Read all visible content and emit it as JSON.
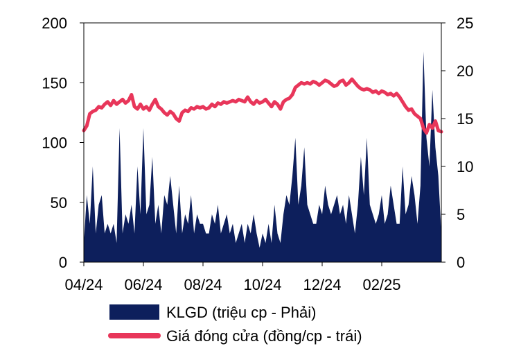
{
  "chart_data": {
    "type": "line",
    "x_tick_labels": [
      "04/24",
      "06/24",
      "08/24",
      "10/24",
      "12/24",
      "02/25"
    ],
    "x_tick_months": [
      0,
      2,
      4,
      6,
      8,
      10
    ],
    "x_range_months": [
      0,
      12
    ],
    "y_left": {
      "ticks": [
        "0",
        "50",
        "100",
        "150",
        "200"
      ],
      "range": [
        0,
        200
      ]
    },
    "y_right": {
      "ticks": [
        "0",
        "5",
        "10",
        "15",
        "20",
        "25"
      ],
      "range": [
        0,
        25
      ]
    },
    "legend_position": "bottom",
    "grid": false,
    "series": [
      {
        "name": "KLGD (triệu cp - Phải)",
        "type": "area",
        "axis": "right",
        "color": "#0d1f5c",
        "x": [
          0,
          0.1,
          0.2,
          0.3,
          0.4,
          0.5,
          0.6,
          0.7,
          0.8,
          0.9,
          1.0,
          1.1,
          1.2,
          1.3,
          1.4,
          1.5,
          1.6,
          1.7,
          1.8,
          1.9,
          2.0,
          2.1,
          2.2,
          2.3,
          2.4,
          2.5,
          2.6,
          2.7,
          2.8,
          2.9,
          3.0,
          3.1,
          3.2,
          3.3,
          3.4,
          3.5,
          3.6,
          3.7,
          3.8,
          3.9,
          4.0,
          4.1,
          4.2,
          4.3,
          4.4,
          4.5,
          4.6,
          4.7,
          4.8,
          4.9,
          5.0,
          5.1,
          5.2,
          5.3,
          5.4,
          5.5,
          5.6,
          5.7,
          5.8,
          5.9,
          6.0,
          6.1,
          6.2,
          6.3,
          6.4,
          6.5,
          6.6,
          6.7,
          6.8,
          6.9,
          7.0,
          7.1,
          7.2,
          7.3,
          7.4,
          7.5,
          7.6,
          7.7,
          7.8,
          7.9,
          8.0,
          8.1,
          8.2,
          8.3,
          8.4,
          8.5,
          8.6,
          8.7,
          8.8,
          8.9,
          9.0,
          9.1,
          9.2,
          9.3,
          9.4,
          9.5,
          9.6,
          9.7,
          9.8,
          9.9,
          10.0,
          10.1,
          10.2,
          10.3,
          10.4,
          10.5,
          10.6,
          10.7,
          10.8,
          10.9,
          11.0,
          11.1,
          11.2,
          11.3,
          11.4,
          11.5,
          11.6,
          11.7,
          11.8,
          11.9,
          12.0
        ],
        "values": [
          2,
          7,
          4,
          10,
          3,
          6,
          7,
          3,
          4,
          3,
          4,
          2,
          14,
          3,
          5,
          4,
          6,
          3,
          10,
          5,
          14,
          5,
          6,
          11,
          4,
          6,
          3,
          7,
          6,
          9,
          6,
          3,
          8,
          3,
          5,
          4,
          7,
          3,
          5,
          4,
          4,
          3,
          3,
          5,
          4,
          6,
          3,
          4,
          5,
          3,
          4,
          2,
          3,
          4,
          2,
          4,
          3,
          5,
          3,
          1.5,
          3,
          2,
          4,
          2,
          6,
          3,
          2,
          5,
          7,
          6,
          9,
          13,
          6,
          8,
          12,
          6,
          5,
          4,
          4,
          6,
          5,
          8,
          6,
          5,
          6,
          7,
          5,
          6,
          4,
          7,
          5,
          3,
          6,
          11,
          7,
          13,
          6,
          5,
          4,
          5,
          7,
          4,
          5,
          8,
          6,
          4,
          4,
          10,
          5,
          6,
          9,
          7,
          4,
          8,
          22,
          13,
          10,
          18,
          12,
          9,
          3
        ]
      },
      {
        "name": "Giá đóng cửa (đồng/cp - trái)",
        "type": "line",
        "axis": "left",
        "color": "#e8365a",
        "x": [
          0,
          0.1,
          0.2,
          0.3,
          0.4,
          0.5,
          0.6,
          0.7,
          0.8,
          0.9,
          1.0,
          1.1,
          1.2,
          1.3,
          1.4,
          1.5,
          1.6,
          1.7,
          1.8,
          1.9,
          2.0,
          2.1,
          2.2,
          2.3,
          2.4,
          2.5,
          2.6,
          2.7,
          2.8,
          2.9,
          3.0,
          3.1,
          3.2,
          3.3,
          3.4,
          3.5,
          3.6,
          3.7,
          3.8,
          3.9,
          4.0,
          4.1,
          4.2,
          4.3,
          4.4,
          4.5,
          4.6,
          4.7,
          4.8,
          4.9,
          5.0,
          5.1,
          5.2,
          5.3,
          5.4,
          5.5,
          5.6,
          5.7,
          5.8,
          5.9,
          6.0,
          6.1,
          6.2,
          6.3,
          6.4,
          6.5,
          6.6,
          6.7,
          6.8,
          6.9,
          7.0,
          7.1,
          7.2,
          7.3,
          7.4,
          7.5,
          7.6,
          7.7,
          7.8,
          7.9,
          8.0,
          8.1,
          8.2,
          8.3,
          8.4,
          8.5,
          8.6,
          8.7,
          8.8,
          8.9,
          9.0,
          9.1,
          9.2,
          9.3,
          9.4,
          9.5,
          9.6,
          9.7,
          9.8,
          9.9,
          10.0,
          10.1,
          10.2,
          10.3,
          10.4,
          10.5,
          10.6,
          10.7,
          10.8,
          10.9,
          11.0,
          11.1,
          11.2,
          11.3,
          11.4,
          11.5,
          11.6,
          11.7,
          11.8,
          11.9,
          12.0
        ],
        "values": [
          110,
          114,
          124,
          126,
          127,
          130,
          129,
          132,
          134,
          131,
          135,
          132,
          134,
          136,
          133,
          135,
          140,
          130,
          128,
          132,
          128,
          130,
          127,
          132,
          136,
          130,
          128,
          125,
          123,
          126,
          124,
          120,
          118,
          125,
          127,
          126,
          129,
          128,
          130,
          129,
          130,
          128,
          129,
          132,
          130,
          133,
          132,
          134,
          133,
          134,
          135,
          134,
          136,
          135,
          134,
          138,
          134,
          132,
          135,
          133,
          134,
          136,
          133,
          130,
          134,
          132,
          128,
          134,
          136,
          137,
          140,
          146,
          148,
          150,
          149,
          150,
          149,
          151,
          150,
          148,
          150,
          152,
          151,
          149,
          147,
          148,
          151,
          152,
          148,
          150,
          153,
          150,
          147,
          145,
          144,
          145,
          144,
          142,
          143,
          141,
          143,
          142,
          140,
          141,
          139,
          141,
          138,
          134,
          130,
          127,
          128,
          124,
          122,
          120,
          112,
          108,
          115,
          112,
          118,
          110,
          109
        ]
      }
    ]
  }
}
